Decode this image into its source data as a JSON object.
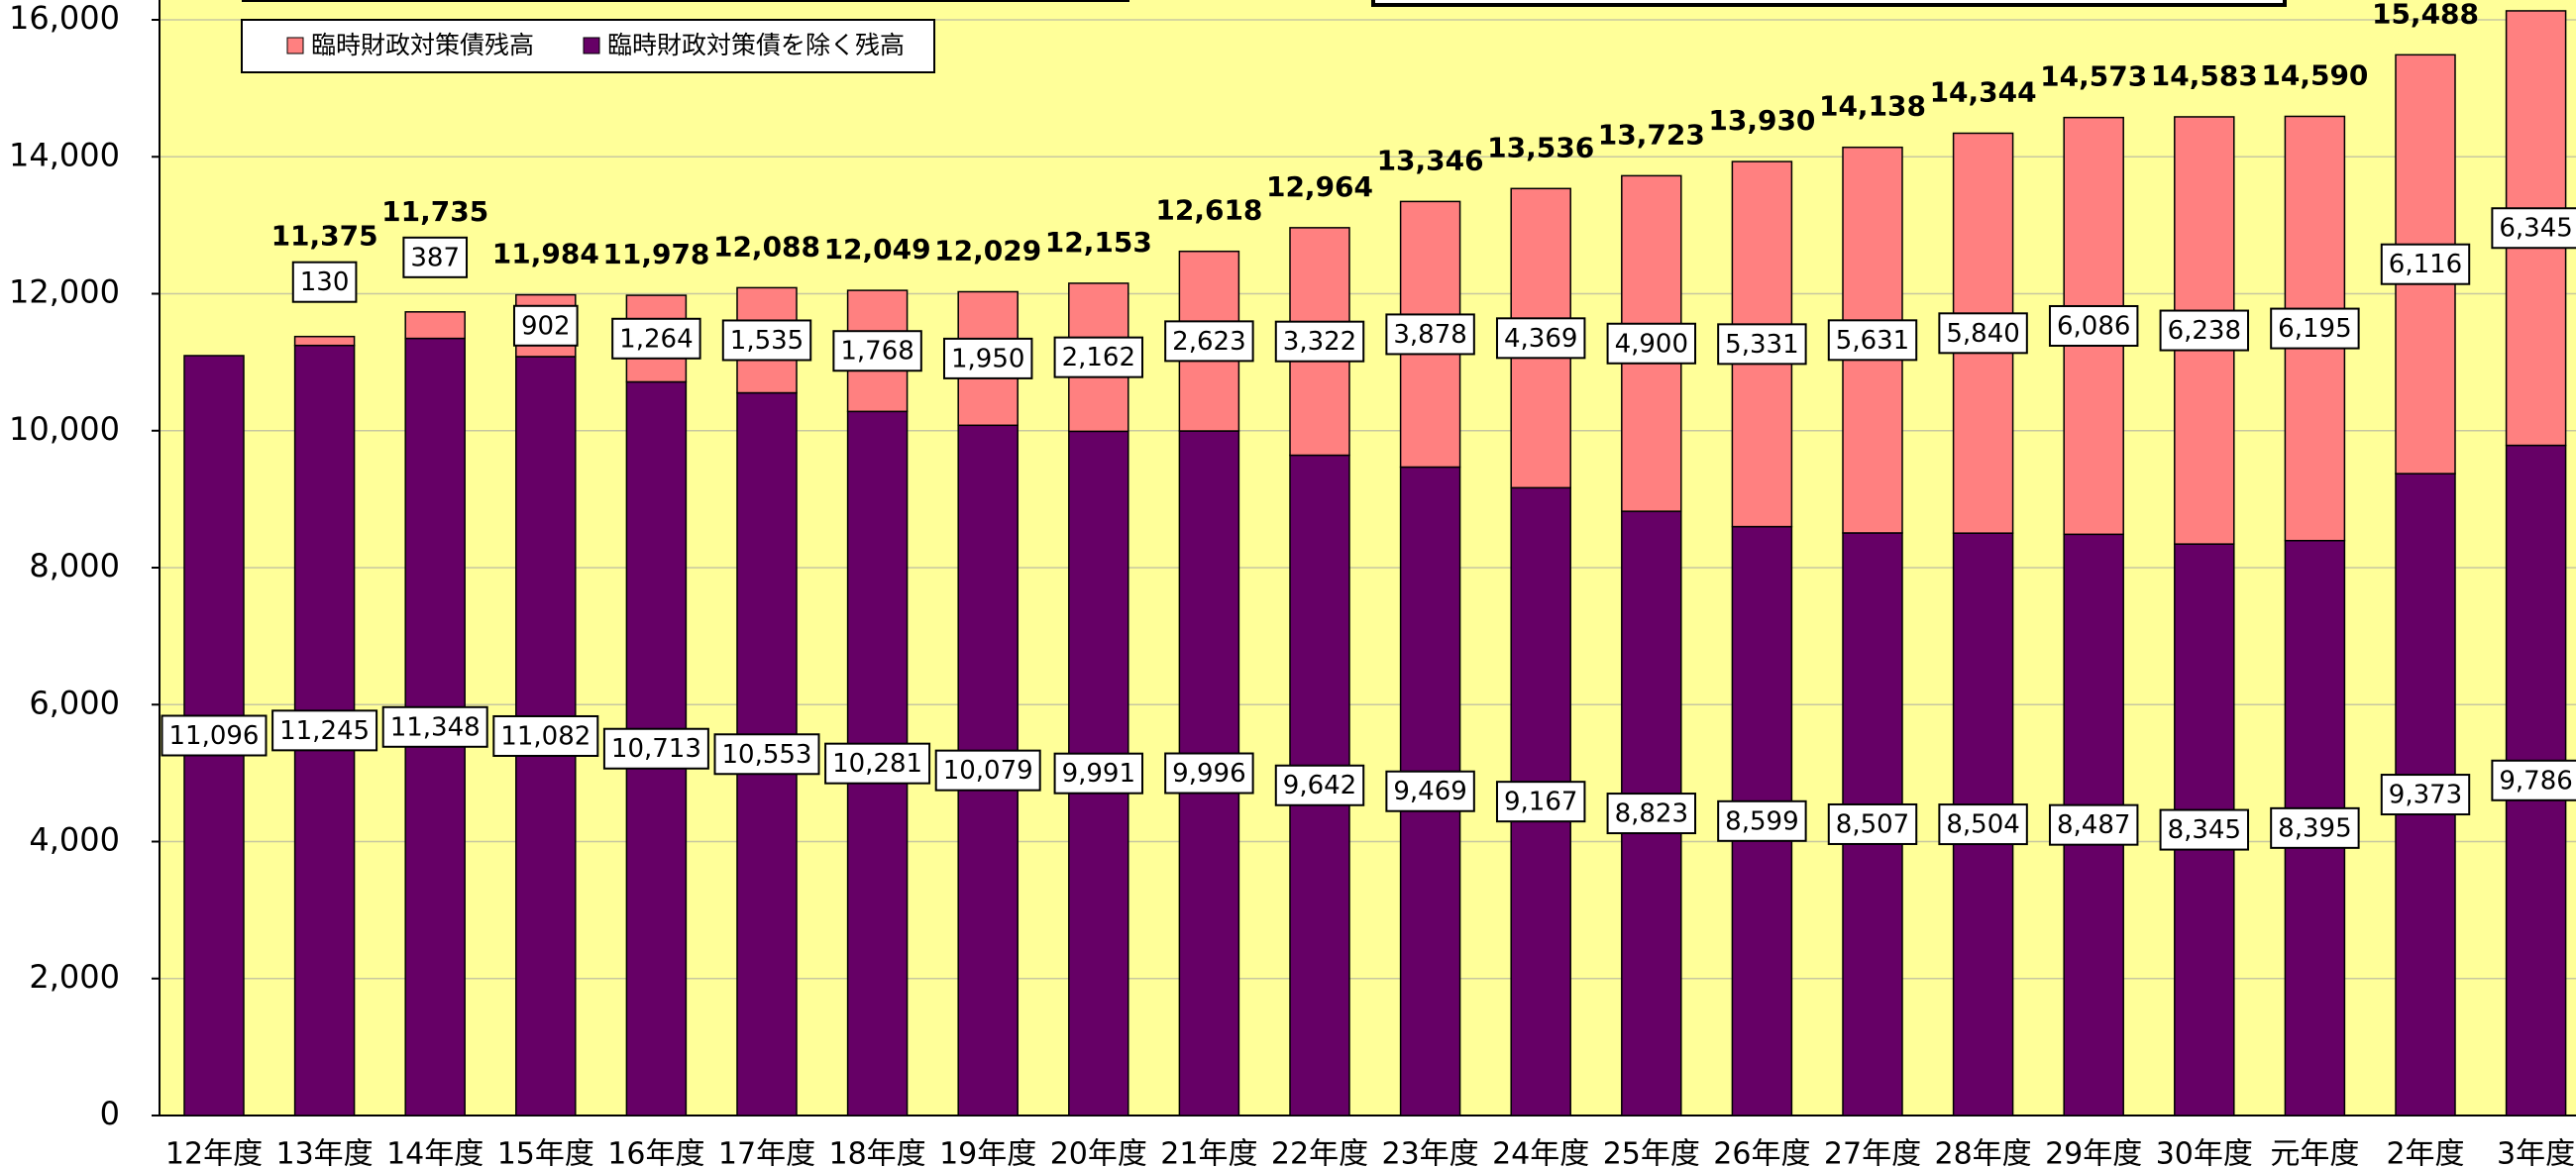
{
  "chart_data": {
    "type": "stacked_bar",
    "categories": [
      "12年度",
      "13年度",
      "14年度",
      "15年度",
      "16年度",
      "17年度",
      "18年度",
      "19年度",
      "20年度",
      "21年度",
      "22年度",
      "23年度",
      "24年度",
      "25年度",
      "26年度",
      "27年度",
      "28年度",
      "29年度",
      "30年度",
      "元年度",
      "2年度",
      "3年度"
    ],
    "series": [
      {
        "name": "臨時財政対策債を除く残高",
        "color": "#660066",
        "values": [
          11096,
          11245,
          11348,
          11082,
          10713,
          10553,
          10281,
          10079,
          9991,
          9996,
          9642,
          9469,
          9167,
          8823,
          8599,
          8507,
          8504,
          8487,
          8345,
          8395,
          9373,
          9786
        ],
        "value_labels": [
          "11,096",
          "11,245",
          "11,348",
          "11,082",
          "10,713",
          "10,553",
          "10,281",
          "10,079",
          "9,991",
          "9,996",
          "9,642",
          "9,469",
          "9,167",
          "8,823",
          "8,599",
          "8,507",
          "8,504",
          "8,487",
          "8,345",
          "8,395",
          "9,373",
          "9,786"
        ]
      },
      {
        "name": "臨時財政対策債残高",
        "color": "#ff8080",
        "values": [
          null,
          130,
          387,
          902,
          1264,
          1535,
          1768,
          1950,
          2162,
          2623,
          3322,
          3878,
          4369,
          4900,
          5331,
          5631,
          5840,
          6086,
          6238,
          6195,
          6116,
          6345
        ],
        "value_labels": [
          null,
          "130",
          "387",
          "902",
          "1,264",
          "1,535",
          "1,768",
          "1,950",
          "2,162",
          "2,623",
          "3,322",
          "3,878",
          "4,369",
          "4,900",
          "5,331",
          "5,631",
          "5,840",
          "6,086",
          "6,238",
          "6,195",
          "6,116",
          "6,345"
        ]
      }
    ],
    "total_labels": [
      null,
      "11,375",
      "11,735",
      "11,984",
      "11,978",
      "12,088",
      "12,049",
      "12,029",
      "12,153",
      "12,618",
      "12,964",
      "13,346",
      "13,536",
      "13,723",
      "13,930",
      "14,138",
      "14,344",
      "14,573",
      "14,583",
      "14,590",
      "15,488",
      null
    ],
    "ylim": [
      0,
      16000
    ],
    "yticks": [
      0,
      {
        "value": 2000,
        "label": "2,000"
      },
      {
        "value": 4000,
        "label": "4,000"
      },
      {
        "value": 6000,
        "label": "6,000"
      },
      {
        "value": 8000,
        "label": "8,000"
      },
      {
        "value": 10000,
        "label": "10,000"
      },
      {
        "value": 12000,
        "label": "12,000"
      },
      {
        "value": 14000,
        "label": "14,000"
      },
      {
        "value": 16000,
        "label": "16,000"
      }
    ],
    "grid": true,
    "legend": "top-left"
  }
}
